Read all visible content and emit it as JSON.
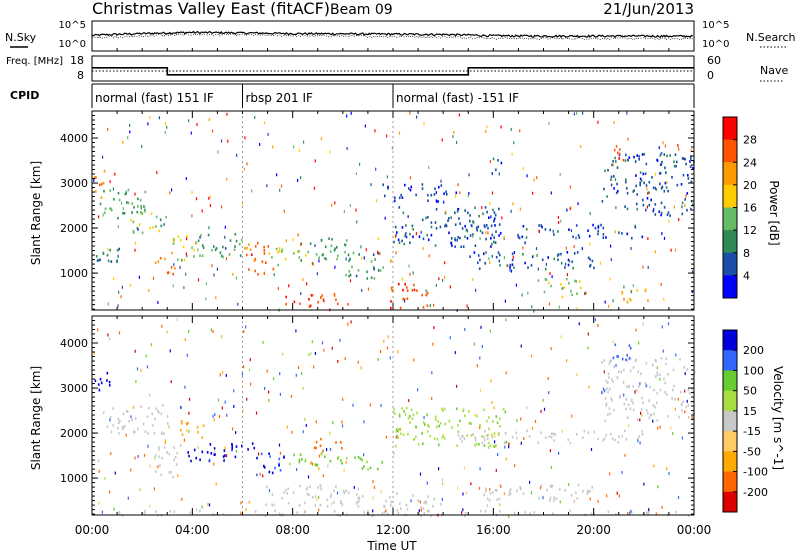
{
  "header": {
    "title": "Christmas Valley East (fitACF)",
    "beam": "Beam 09",
    "date": "21/Jun/2013"
  },
  "colors": {
    "power_scale": [
      "#0000ff",
      "#1a4fa8",
      "#2e8b57",
      "#66bb66",
      "#ffcc00",
      "#ff9900",
      "#ff5500",
      "#ff0000"
    ],
    "velocity_scale": [
      "#0000dd",
      "#3366ff",
      "#66cc33",
      "#aadd44",
      "#c8c8c8",
      "#ffcc66",
      "#ffaa00",
      "#ff6600",
      "#dd0000"
    ]
  },
  "chart_data": [
    {
      "type": "line",
      "panel": "sky-noise",
      "ylabel": "N.Sky",
      "ylabel_right": "N.Search",
      "yticks_left": [
        "10^5",
        "10^0"
      ],
      "yticks_right": [
        "10^5",
        "10^0"
      ],
      "yscale": "log",
      "ylim": [
        1,
        100000
      ],
      "series": [
        {
          "name": "N.Sky",
          "x": [
            0,
            2,
            4,
            6,
            8,
            10,
            12,
            14,
            16,
            18,
            20,
            22,
            24
          ],
          "values": [
            400,
            900,
            1500,
            1200,
            900,
            800,
            700,
            600,
            350,
            300,
            300,
            300,
            280
          ]
        },
        {
          "name": "N.Search",
          "x": [
            0,
            2,
            4,
            6,
            8,
            10,
            12,
            14,
            16,
            18,
            20,
            22,
            24
          ],
          "values": [
            150,
            300,
            600,
            500,
            350,
            300,
            250,
            200,
            120,
            100,
            100,
            100,
            90
          ]
        }
      ]
    },
    {
      "type": "line",
      "panel": "frequency-nave",
      "ylabel": "Freq. [MHz]",
      "ylabel_right": "Nave",
      "yticks_left": [
        "18",
        "8"
      ],
      "yticks_right": [
        "60",
        "0"
      ],
      "series": [
        {
          "name": "Freq",
          "x": [
            0,
            3.0,
            3.0,
            15.0,
            15.0,
            24
          ],
          "values": [
            13.3,
            13.3,
            10.5,
            10.5,
            13.3,
            13.3
          ]
        },
        {
          "name": "Nave",
          "x": [
            0,
            24
          ],
          "values": [
            24,
            24
          ]
        }
      ]
    },
    {
      "type": "table",
      "panel": "cpid",
      "label": "CPID",
      "segments": [
        {
          "start": 0,
          "end": 6.0,
          "text": "normal (fast) 151 IF"
        },
        {
          "start": 6.0,
          "end": 12.0,
          "text": "rbsp 201 IF"
        },
        {
          "start": 12.0,
          "end": 24,
          "text": "normal (fast) -151 IF"
        }
      ]
    },
    {
      "type": "heatmap",
      "panel": "power",
      "ylabel": "Slant Range [km]",
      "yticks": [
        "1000",
        "2000",
        "3000",
        "4000"
      ],
      "ylim": [
        180,
        4600
      ],
      "colorbar_label": "Power [dB]",
      "colorbar_ticks": [
        "4",
        "8",
        "12",
        "16",
        "20",
        "24",
        "28"
      ],
      "zlim": [
        0,
        30
      ],
      "echo_regions": [
        {
          "t0": 0.1,
          "t1": 0.5,
          "r0": 2700,
          "r1": 3400,
          "level": 22
        },
        {
          "t0": 0.3,
          "t1": 2.2,
          "r0": 2200,
          "r1": 2900,
          "level": 12
        },
        {
          "t0": 0.1,
          "t1": 1.2,
          "r0": 1100,
          "r1": 1600,
          "level": 8
        },
        {
          "t0": 1.5,
          "t1": 3.0,
          "r0": 1900,
          "r1": 2400,
          "level": 14
        },
        {
          "t0": 2.5,
          "t1": 3.3,
          "r0": 1000,
          "r1": 1500,
          "level": 22
        },
        {
          "t0": 3.2,
          "t1": 4.2,
          "r0": 1300,
          "r1": 1900,
          "level": 16
        },
        {
          "t0": 4.0,
          "t1": 6.0,
          "r0": 1400,
          "r1": 1900,
          "level": 10
        },
        {
          "t0": 6.0,
          "t1": 7.2,
          "r0": 1000,
          "r1": 1700,
          "level": 24
        },
        {
          "t0": 7.0,
          "t1": 8.5,
          "r0": 1200,
          "r1": 1600,
          "level": 14
        },
        {
          "t0": 8.3,
          "t1": 10.5,
          "r0": 1300,
          "r1": 1800,
          "level": 12
        },
        {
          "t0": 10.0,
          "t1": 11.6,
          "r0": 900,
          "r1": 1500,
          "level": 10
        },
        {
          "t0": 7.5,
          "t1": 9.2,
          "r0": 250,
          "r1": 550,
          "level": 26
        },
        {
          "t0": 9.6,
          "t1": 10.3,
          "r0": 300,
          "r1": 600,
          "level": 24
        },
        {
          "t0": 11.7,
          "t1": 13.4,
          "r0": 250,
          "r1": 800,
          "level": 26
        },
        {
          "t0": 12.0,
          "t1": 16.5,
          "r0": 1600,
          "r1": 2500,
          "level": 6
        },
        {
          "t0": 11.5,
          "t1": 14.5,
          "r0": 2600,
          "r1": 3000,
          "level": 4
        },
        {
          "t0": 14.5,
          "t1": 22.0,
          "r0": 1800,
          "r1": 2100,
          "level": 5
        },
        {
          "t0": 15.0,
          "t1": 20.0,
          "r0": 1100,
          "r1": 1500,
          "level": 5
        },
        {
          "t0": 17.5,
          "t1": 19.5,
          "r0": 500,
          "r1": 900,
          "level": 14
        },
        {
          "t0": 21.0,
          "t1": 22.2,
          "r0": 350,
          "r1": 700,
          "level": 20
        },
        {
          "t0": 20.3,
          "t1": 24.0,
          "r0": 2300,
          "r1": 3700,
          "level": 6
        },
        {
          "t0": 20.7,
          "t1": 21.3,
          "r0": 3500,
          "r1": 3900,
          "level": 24
        },
        {
          "t0": 15.9,
          "t1": 16.4,
          "r0": 3300,
          "r1": 3600,
          "level": 6
        }
      ]
    },
    {
      "type": "heatmap",
      "panel": "velocity",
      "ylabel": "Slant Range [km]",
      "yticks": [
        "1000",
        "2000",
        "3000",
        "4000"
      ],
      "ylim": [
        180,
        4600
      ],
      "colorbar_label": "Velocity [m s^-1]",
      "colorbar_ticks": [
        "200",
        "100",
        "50",
        "15",
        "-15",
        "-50",
        "-100",
        "-200"
      ],
      "zlim": [
        -250,
        250
      ],
      "echo_regions": [
        {
          "t0": 0.1,
          "t1": 0.7,
          "r0": 2800,
          "r1": 3400,
          "level": 220
        },
        {
          "t0": 0.4,
          "t1": 3.0,
          "r0": 2000,
          "r1": 2700,
          "level": 0
        },
        {
          "t0": 2.5,
          "t1": 3.5,
          "r0": 1000,
          "r1": 1800,
          "level": 0
        },
        {
          "t0": 3.5,
          "t1": 4.5,
          "r0": 1900,
          "r1": 2300,
          "level": -60
        },
        {
          "t0": 3.8,
          "t1": 6.5,
          "r0": 1400,
          "r1": 1800,
          "level": 220
        },
        {
          "t0": 6.5,
          "t1": 7.8,
          "r0": 1100,
          "r1": 1600,
          "level": 200
        },
        {
          "t0": 7.8,
          "t1": 10.2,
          "r0": 1300,
          "r1": 1600,
          "level": 60
        },
        {
          "t0": 8.8,
          "t1": 10.0,
          "r0": 1600,
          "r1": 1900,
          "level": -120
        },
        {
          "t0": 10.2,
          "t1": 11.6,
          "r0": 1200,
          "r1": 1500,
          "level": 60
        },
        {
          "t0": 6.8,
          "t1": 10.8,
          "r0": 400,
          "r1": 900,
          "level": 0
        },
        {
          "t0": 12.0,
          "t1": 16.5,
          "r0": 1700,
          "r1": 2600,
          "level": 40
        },
        {
          "t0": 11.6,
          "t1": 14.0,
          "r0": 300,
          "r1": 700,
          "level": 0
        },
        {
          "t0": 14.5,
          "t1": 22.0,
          "r0": 1800,
          "r1": 2100,
          "level": 0
        },
        {
          "t0": 15.5,
          "t1": 20.0,
          "r0": 500,
          "r1": 900,
          "level": 0
        },
        {
          "t0": 20.3,
          "t1": 24.0,
          "r0": 2300,
          "r1": 3700,
          "level": 0
        },
        {
          "t0": 20.7,
          "t1": 21.5,
          "r0": 3500,
          "r1": 4000,
          "level": 180
        },
        {
          "t0": 0.5,
          "t1": 24.0,
          "r0": 180,
          "r1": 300,
          "level": 0
        }
      ]
    }
  ],
  "xaxis": {
    "label": "Time UT",
    "ticks": [
      "00:00",
      "04:00",
      "08:00",
      "12:00",
      "16:00",
      "20:00",
      "00:00"
    ]
  }
}
